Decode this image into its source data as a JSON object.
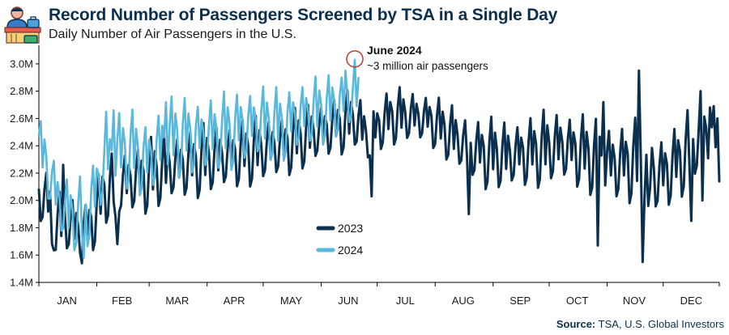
{
  "header": {
    "title": "Record Number of Passengers Screened by TSA in a Single Day",
    "subtitle": "Daily Number of Air Passengers in the U.S."
  },
  "source": {
    "label": "Source:",
    "text": "TSA, U.S. Global Investors"
  },
  "colors": {
    "series_2023": "#0b2f4f",
    "series_2024": "#5ab8dc",
    "annotation_circle": "#c0392b",
    "title": "#0b2f4f",
    "axis": "#000000"
  },
  "chart_data": {
    "type": "line",
    "title": "Record Number of Passengers Screened by TSA in a Single Day",
    "subtitle": "Daily Number of Air Passengers in the U.S.",
    "xlabel": "",
    "ylabel": "",
    "x_unit": "day of year",
    "xlim": [
      1,
      365
    ],
    "ylim": [
      1.4,
      3.1
    ],
    "ytick_values": [
      1.4,
      1.6,
      1.8,
      2.0,
      2.2,
      2.4,
      2.6,
      2.8,
      3.0
    ],
    "ytick_labels": [
      "1.4M",
      "1.6M",
      "1.8M",
      "2.0M",
      "2.2M",
      "2.4M",
      "2.6M",
      "2.8M",
      "3.0M"
    ],
    "xtick_labels": [
      "JAN",
      "FEB",
      "MAR",
      "APR",
      "MAY",
      "JUN",
      "JUL",
      "AUG",
      "SEP",
      "OCT",
      "NOV",
      "DEC"
    ],
    "legend": {
      "placement": "center",
      "entries": [
        "2023",
        "2024"
      ]
    },
    "annotation": {
      "title": "June 2024",
      "text": "~3 million air passengers",
      "day": 170,
      "value": 3.03
    },
    "series": [
      {
        "name": "2023",
        "start_day": 1,
        "anchors": [
          [
            1,
            2.05
          ],
          [
            6,
            2.0
          ],
          [
            10,
            1.82
          ],
          [
            15,
            1.85
          ],
          [
            20,
            1.8
          ],
          [
            25,
            1.78
          ],
          [
            31,
            1.88
          ],
          [
            36,
            2.08
          ],
          [
            42,
            2.1
          ],
          [
            50,
            2.15
          ],
          [
            59,
            2.18
          ],
          [
            70,
            2.24
          ],
          [
            80,
            2.27
          ],
          [
            90,
            2.3
          ],
          [
            100,
            2.32
          ],
          [
            110,
            2.35
          ],
          [
            120,
            2.37
          ],
          [
            130,
            2.4
          ],
          [
            140,
            2.45
          ],
          [
            150,
            2.5
          ],
          [
            160,
            2.55
          ],
          [
            170,
            2.6
          ],
          [
            178,
            2.45
          ],
          [
            182,
            2.55
          ],
          [
            190,
            2.62
          ],
          [
            200,
            2.62
          ],
          [
            210,
            2.6
          ],
          [
            220,
            2.5
          ],
          [
            230,
            2.4
          ],
          [
            240,
            2.35
          ],
          [
            250,
            2.33
          ],
          [
            260,
            2.35
          ],
          [
            270,
            2.38
          ],
          [
            280,
            2.4
          ],
          [
            290,
            2.37
          ],
          [
            300,
            2.3
          ],
          [
            310,
            2.27
          ],
          [
            318,
            2.3
          ],
          [
            325,
            2.25
          ],
          [
            332,
            2.18
          ],
          [
            340,
            2.25
          ],
          [
            350,
            2.4
          ],
          [
            358,
            2.5
          ],
          [
            365,
            2.45
          ]
        ],
        "amplitude_anchors": [
          [
            1,
            0.2
          ],
          [
            31,
            0.22
          ],
          [
            59,
            0.25
          ],
          [
            120,
            0.23
          ],
          [
            170,
            0.2
          ],
          [
            210,
            0.18
          ],
          [
            240,
            0.24
          ],
          [
            290,
            0.26
          ],
          [
            330,
            0.3
          ],
          [
            365,
            0.22
          ]
        ],
        "extremes": [
          [
            8,
            1.68
          ],
          [
            14,
            2.26
          ],
          [
            24,
            1.54
          ],
          [
            42,
            1.88
          ],
          [
            43,
            1.68
          ],
          [
            179,
            2.03
          ],
          [
            231,
            1.9
          ],
          [
            300,
            1.67
          ],
          [
            303,
            2.72
          ],
          [
            322,
            2.95
          ],
          [
            324,
            1.55
          ],
          [
            327,
            1.96
          ],
          [
            350,
            1.85
          ],
          [
            355,
            2.8
          ],
          [
            356,
            2.0
          ],
          [
            360,
            2.68
          ],
          [
            362,
            2.69
          ],
          [
            364,
            2.6
          ],
          [
            365,
            2.14
          ]
        ]
      },
      {
        "name": "2024",
        "start_day": 1,
        "end_day": 172,
        "anchors": [
          [
            1,
            2.4
          ],
          [
            6,
            2.25
          ],
          [
            10,
            2.05
          ],
          [
            15,
            1.92
          ],
          [
            20,
            1.88
          ],
          [
            25,
            1.9
          ],
          [
            31,
            2.05
          ],
          [
            36,
            2.3
          ],
          [
            42,
            2.35
          ],
          [
            50,
            2.38
          ],
          [
            59,
            2.3
          ],
          [
            70,
            2.45
          ],
          [
            80,
            2.48
          ],
          [
            90,
            2.47
          ],
          [
            100,
            2.5
          ],
          [
            110,
            2.55
          ],
          [
            120,
            2.57
          ],
          [
            130,
            2.55
          ],
          [
            140,
            2.62
          ],
          [
            150,
            2.65
          ],
          [
            160,
            2.7
          ],
          [
            167,
            2.75
          ],
          [
            172,
            2.78
          ]
        ],
        "amplitude_anchors": [
          [
            1,
            0.24
          ],
          [
            31,
            0.26
          ],
          [
            59,
            0.28
          ],
          [
            120,
            0.26
          ],
          [
            172,
            0.22
          ]
        ],
        "extremes": [
          [
            2,
            2.58
          ],
          [
            25,
            1.58
          ],
          [
            37,
            2.65
          ],
          [
            41,
            2.66
          ],
          [
            69,
            2.72
          ],
          [
            165,
            2.95
          ],
          [
            170,
            3.03
          ]
        ]
      }
    ]
  }
}
